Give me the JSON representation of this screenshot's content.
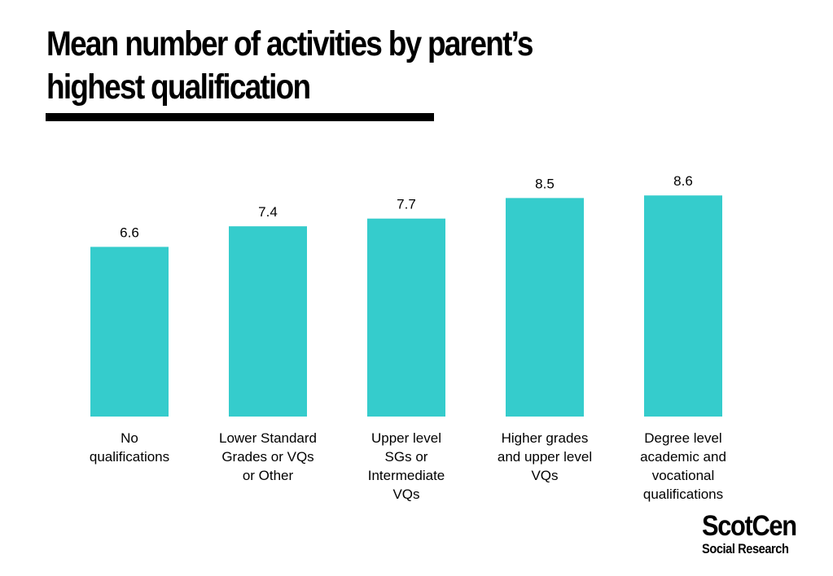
{
  "title_lines": [
    "Mean number of activities by parent’s",
    "highest qualification"
  ],
  "colors": {
    "bar": "#35cccc",
    "text": "#000000",
    "background": "#ffffff"
  },
  "chart_data": {
    "type": "bar",
    "title": "Mean number of activities by parent’s highest qualification",
    "categories": [
      [
        "No",
        "qualifications"
      ],
      [
        "Lower Standard",
        "Grades or VQs",
        "or Other"
      ],
      [
        "Upper level",
        "SGs or",
        "Intermediate",
        "VQs"
      ],
      [
        "Higher grades",
        "and upper level",
        "VQs"
      ],
      [
        "Degree level",
        "academic and",
        "vocational",
        "qualifications"
      ]
    ],
    "values": [
      6.6,
      7.4,
      7.7,
      8.5,
      8.6
    ],
    "ylim": [
      0,
      10
    ],
    "grid": false,
    "legend": "none",
    "data_labels": true
  },
  "logo": {
    "name": "ScotCen",
    "subtitle": "Social Research"
  }
}
